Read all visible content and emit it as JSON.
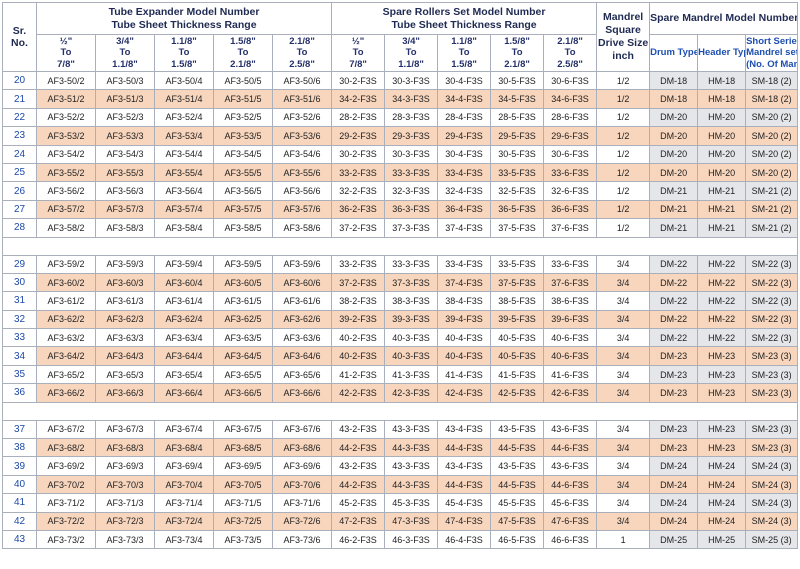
{
  "header": {
    "sr": "Sr.\nNo.",
    "sr_line1": "Sr.",
    "sr_line2": "No.",
    "expander_line1": "Tube Expander Model Number",
    "expander_line2": "Tube Sheet Thickness Range",
    "rollers_line1": "Spare Rollers Set Model Number",
    "rollers_line2": "Tube Sheet Thickness Range",
    "mandrel_lines": [
      "Mandrel",
      "Square",
      "Drive Size",
      "inch"
    ],
    "spare_mandrel": "Spare Mandrel Model Number",
    "ranges": [
      [
        "½\"",
        "To",
        "7/8\""
      ],
      [
        "3/4\"",
        "To",
        "1.1/8\""
      ],
      [
        "1.1/8\"",
        "To",
        "1.5/8\""
      ],
      [
        "1.5/8\"",
        "To",
        "2.1/8\""
      ],
      [
        "2.1/8\"",
        "To",
        "2.5/8\""
      ]
    ],
    "drum_type": "Drum Type",
    "header_type": "Header Type",
    "short_series": [
      "Short Series",
      "Mandrel set",
      "(No. Of Mandrel)"
    ]
  },
  "groups": [
    {
      "rows": [
        {
          "sr": "20",
          "exp": [
            "AF3-50/2",
            "AF3-50/3",
            "AF3-50/4",
            "AF3-50/5",
            "AF3-50/6"
          ],
          "rol": [
            "30-2-F3S",
            "30-3-F3S",
            "30-4-F3S",
            "30-5-F3S",
            "30-6-F3S"
          ],
          "drive": "1/2",
          "drum": "DM-18",
          "hdr": "HM-18",
          "short": "SM-18 (2)"
        },
        {
          "sr": "21",
          "exp": [
            "AF3-51/2",
            "AF3-51/3",
            "AF3-51/4",
            "AF3-51/5",
            "AF3-51/6"
          ],
          "rol": [
            "34-2-F3S",
            "34-3-F3S",
            "34-4-F3S",
            "34-5-F3S",
            "34-6-F3S"
          ],
          "drive": "1/2",
          "drum": "DM-18",
          "hdr": "HM-18",
          "short": "SM-18 (2)"
        },
        {
          "sr": "22",
          "exp": [
            "AF3-52/2",
            "AF3-52/3",
            "AF3-52/4",
            "AF3-52/5",
            "AF3-52/6"
          ],
          "rol": [
            "28-2-F3S",
            "28-3-F3S",
            "28-4-F3S",
            "28-5-F3S",
            "28-6-F3S"
          ],
          "drive": "1/2",
          "drum": "DM-20",
          "hdr": "HM-20",
          "short": "SM-20 (2)"
        },
        {
          "sr": "23",
          "exp": [
            "AF3-53/2",
            "AF3-53/3",
            "AF3-53/4",
            "AF3-53/5",
            "AF3-53/6"
          ],
          "rol": [
            "29-2-F3S",
            "29-3-F3S",
            "29-4-F3S",
            "29-5-F3S",
            "29-6-F3S"
          ],
          "drive": "1/2",
          "drum": "DM-20",
          "hdr": "HM-20",
          "short": "SM-20 (2)"
        },
        {
          "sr": "24",
          "exp": [
            "AF3-54/2",
            "AF3-54/3",
            "AF3-54/4",
            "AF3-54/5",
            "AF3-54/6"
          ],
          "rol": [
            "30-2-F3S",
            "30-3-F3S",
            "30-4-F3S",
            "30-5-F3S",
            "30-6-F3S"
          ],
          "drive": "1/2",
          "drum": "DM-20",
          "hdr": "HM-20",
          "short": "SM-20 (2)"
        },
        {
          "sr": "25",
          "exp": [
            "AF3-55/2",
            "AF3-55/3",
            "AF3-55/4",
            "AF3-55/5",
            "AF3-55/6"
          ],
          "rol": [
            "33-2-F3S",
            "33-3-F3S",
            "33-4-F3S",
            "33-5-F3S",
            "33-6-F3S"
          ],
          "drive": "1/2",
          "drum": "DM-20",
          "hdr": "HM-20",
          "short": "SM-20 (2)"
        },
        {
          "sr": "26",
          "exp": [
            "AF3-56/2",
            "AF3-56/3",
            "AF3-56/4",
            "AF3-56/5",
            "AF3-56/6"
          ],
          "rol": [
            "32-2-F3S",
            "32-3-F3S",
            "32-4-F3S",
            "32-5-F3S",
            "32-6-F3S"
          ],
          "drive": "1/2",
          "drum": "DM-21",
          "hdr": "HM-21",
          "short": "SM-21 (2)"
        },
        {
          "sr": "27",
          "exp": [
            "AF3-57/2",
            "AF3-57/3",
            "AF3-57/4",
            "AF3-57/5",
            "AF3-57/6"
          ],
          "rol": [
            "36-2-F3S",
            "36-3-F3S",
            "36-4-F3S",
            "36-5-F3S",
            "36-6-F3S"
          ],
          "drive": "1/2",
          "drum": "DM-21",
          "hdr": "HM-21",
          "short": "SM-21 (2)"
        },
        {
          "sr": "28",
          "exp": [
            "AF3-58/2",
            "AF3-58/3",
            "AF3-58/4",
            "AF3-58/5",
            "AF3-58/6"
          ],
          "rol": [
            "37-2-F3S",
            "37-3-F3S",
            "37-4-F3S",
            "37-5-F3S",
            "37-6-F3S"
          ],
          "drive": "1/2",
          "drum": "DM-21",
          "hdr": "HM-21",
          "short": "SM-21 (2)"
        }
      ]
    },
    {
      "rows": [
        {
          "sr": "29",
          "exp": [
            "AF3-59/2",
            "AF3-59/3",
            "AF3-59/4",
            "AF3-59/5",
            "AF3-59/6"
          ],
          "rol": [
            "33-2-F3S",
            "33-3-F3S",
            "33-4-F3S",
            "33-5-F3S",
            "33-6-F3S"
          ],
          "drive": "3/4",
          "drum": "DM-22",
          "hdr": "HM-22",
          "short": "SM-22 (3)"
        },
        {
          "sr": "30",
          "exp": [
            "AF3-60/2",
            "AF3-60/3",
            "AF3-60/4",
            "AF3-60/5",
            "AF3-60/6"
          ],
          "rol": [
            "37-2-F3S",
            "37-3-F3S",
            "37-4-F3S",
            "37-5-F3S",
            "37-6-F3S"
          ],
          "drive": "3/4",
          "drum": "DM-22",
          "hdr": "HM-22",
          "short": "SM-22 (3)"
        },
        {
          "sr": "31",
          "exp": [
            "AF3-61/2",
            "AF3-61/3",
            "AF3-61/4",
            "AF3-61/5",
            "AF3-61/6"
          ],
          "rol": [
            "38-2-F3S",
            "38-3-F3S",
            "38-4-F3S",
            "38-5-F3S",
            "38-6-F3S"
          ],
          "drive": "3/4",
          "drum": "DM-22",
          "hdr": "HM-22",
          "short": "SM-22 (3)"
        },
        {
          "sr": "32",
          "exp": [
            "AF3-62/2",
            "AF3-62/3",
            "AF3-62/4",
            "AF3-62/5",
            "AF3-62/6"
          ],
          "rol": [
            "39-2-F3S",
            "39-3-F3S",
            "39-4-F3S",
            "39-5-F3S",
            "39-6-F3S"
          ],
          "drive": "3/4",
          "drum": "DM-22",
          "hdr": "HM-22",
          "short": "SM-22 (3)"
        },
        {
          "sr": "33",
          "exp": [
            "AF3-63/2",
            "AF3-63/3",
            "AF3-63/4",
            "AF3-63/5",
            "AF3-63/6"
          ],
          "rol": [
            "40-2-F3S",
            "40-3-F3S",
            "40-4-F3S",
            "40-5-F3S",
            "40-6-F3S"
          ],
          "drive": "3/4",
          "drum": "DM-22",
          "hdr": "HM-22",
          "short": "SM-22 (3)"
        },
        {
          "sr": "34",
          "exp": [
            "AF3-64/2",
            "AF3-64/3",
            "AF3-64/4",
            "AF3-64/5",
            "AF3-64/6"
          ],
          "rol": [
            "40-2-F3S",
            "40-3-F3S",
            "40-4-F3S",
            "40-5-F3S",
            "40-6-F3S"
          ],
          "drive": "3/4",
          "drum": "DM-23",
          "hdr": "HM-23",
          "short": "SM-23 (3)"
        },
        {
          "sr": "35",
          "exp": [
            "AF3-65/2",
            "AF3-65/3",
            "AF3-65/4",
            "AF3-65/5",
            "AF3-65/6"
          ],
          "rol": [
            "41-2-F3S",
            "41-3-F3S",
            "41-4-F3S",
            "41-5-F3S",
            "41-6-F3S"
          ],
          "drive": "3/4",
          "drum": "DM-23",
          "hdr": "HM-23",
          "short": "SM-23 (3)"
        },
        {
          "sr": "36",
          "exp": [
            "AF3-66/2",
            "AF3-66/3",
            "AF3-66/4",
            "AF3-66/5",
            "AF3-66/6"
          ],
          "rol": [
            "42-2-F3S",
            "42-3-F3S",
            "42-4-F3S",
            "42-5-F3S",
            "42-6-F3S"
          ],
          "drive": "3/4",
          "drum": "DM-23",
          "hdr": "HM-23",
          "short": "SM-23 (3)"
        }
      ]
    },
    {
      "rows": [
        {
          "sr": "37",
          "exp": [
            "AF3-67/2",
            "AF3-67/3",
            "AF3-67/4",
            "AF3-67/5",
            "AF3-67/6"
          ],
          "rol": [
            "43-2-F3S",
            "43-3-F3S",
            "43-4-F3S",
            "43-5-F3S",
            "43-6-F3S"
          ],
          "drive": "3/4",
          "drum": "DM-23",
          "hdr": "HM-23",
          "short": "SM-23 (3)"
        },
        {
          "sr": "38",
          "exp": [
            "AF3-68/2",
            "AF3-68/3",
            "AF3-68/4",
            "AF3-68/5",
            "AF3-68/6"
          ],
          "rol": [
            "44-2-F3S",
            "44-3-F3S",
            "44-4-F3S",
            "44-5-F3S",
            "44-6-F3S"
          ],
          "drive": "3/4",
          "drum": "DM-23",
          "hdr": "HM-23",
          "short": "SM-23 (3)"
        },
        {
          "sr": "39",
          "exp": [
            "AF3-69/2",
            "AF3-69/3",
            "AF3-69/4",
            "AF3-69/5",
            "AF3-69/6"
          ],
          "rol": [
            "43-2-F3S",
            "43-3-F3S",
            "43-4-F3S",
            "43-5-F3S",
            "43-6-F3S"
          ],
          "drive": "3/4",
          "drum": "DM-24",
          "hdr": "HM-24",
          "short": "SM-24 (3)"
        },
        {
          "sr": "40",
          "exp": [
            "AF3-70/2",
            "AF3-70/3",
            "AF3-70/4",
            "AF3-70/5",
            "AF3-70/6"
          ],
          "rol": [
            "44-2-F3S",
            "44-3-F3S",
            "44-4-F3S",
            "44-5-F3S",
            "44-6-F3S"
          ],
          "drive": "3/4",
          "drum": "DM-24",
          "hdr": "HM-24",
          "short": "SM-24 (3)"
        },
        {
          "sr": "41",
          "exp": [
            "AF3-71/2",
            "AF3-71/3",
            "AF3-71/4",
            "AF3-71/5",
            "AF3-71/6"
          ],
          "rol": [
            "45-2-F3S",
            "45-3-F3S",
            "45-4-F3S",
            "45-5-F3S",
            "45-6-F3S"
          ],
          "drive": "3/4",
          "drum": "DM-24",
          "hdr": "HM-24",
          "short": "SM-24 (3)"
        },
        {
          "sr": "42",
          "exp": [
            "AF3-72/2",
            "AF3-72/3",
            "AF3-72/4",
            "AF3-72/5",
            "AF3-72/6"
          ],
          "rol": [
            "47-2-F3S",
            "47-3-F3S",
            "47-4-F3S",
            "47-5-F3S",
            "47-6-F3S"
          ],
          "drive": "3/4",
          "drum": "DM-24",
          "hdr": "HM-24",
          "short": "SM-24 (3)"
        },
        {
          "sr": "43",
          "exp": [
            "AF3-73/2",
            "AF3-73/3",
            "AF3-73/4",
            "AF3-73/5",
            "AF3-73/6"
          ],
          "rol": [
            "46-2-F3S",
            "46-3-F3S",
            "46-4-F3S",
            "46-5-F3S",
            "46-6-F3S"
          ],
          "drive": "1",
          "drum": "DM-25",
          "hdr": "HM-25",
          "short": "SM-25 (3)"
        }
      ]
    }
  ],
  "colors": {
    "peach": "#f8d6bd",
    "grey": "#e4e6ea",
    "sr_blue": "#1e4aa8",
    "header_navy": "#1f2a52",
    "border": "#a9b0bb"
  }
}
